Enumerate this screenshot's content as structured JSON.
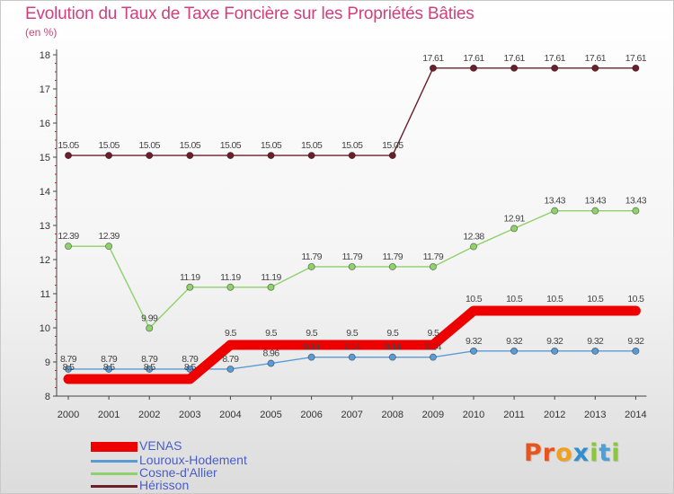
{
  "title": "Evolution du Taux de Taxe Foncière sur les Propriétés Bâties",
  "unit_label": "(en %)",
  "brand": {
    "letters": [
      "P",
      "r",
      "o",
      "x",
      "i",
      "t",
      "i"
    ],
    "colors": [
      "#e8541e",
      "#e8541e",
      "#f0a020",
      "#2f8fd0",
      "#8cc63f",
      "#4aa0d8",
      "#8cc63f"
    ]
  },
  "chart_data": {
    "type": "line",
    "title": "Evolution du Taux de Taxe Foncière sur les Propriétés Bâties",
    "ylabel": "(en %)",
    "xlabel": "",
    "x": [
      "2000",
      "2001",
      "2002",
      "2003",
      "2004",
      "2005",
      "2006",
      "2007",
      "2008",
      "2009",
      "2010",
      "2011",
      "2012",
      "2013",
      "2014"
    ],
    "ylim": [
      8,
      18
    ],
    "yticks": [
      "8",
      "9",
      "10",
      "11",
      "12",
      "13",
      "14",
      "15",
      "16",
      "17",
      "18"
    ],
    "series": [
      {
        "name": "Hérisson",
        "color": "#6b1f2a",
        "values": [
          15.05,
          15.05,
          15.05,
          15.05,
          15.05,
          15.05,
          15.05,
          15.05,
          15.05,
          17.61,
          17.61,
          17.61,
          17.61,
          17.61,
          17.61
        ],
        "labels": [
          "15.05",
          "15.05",
          "15.05",
          "15.05",
          "15.05",
          "15.05",
          "15.05",
          "15.05",
          "15.05",
          "17.61",
          "17.61",
          "17.61",
          "17.61",
          "17.61",
          "17.61"
        ]
      },
      {
        "name": "Cosne-d'Allier",
        "color": "#8fd16a",
        "values": [
          12.39,
          12.39,
          9.99,
          11.19,
          11.19,
          11.19,
          11.79,
          11.79,
          11.79,
          11.79,
          12.38,
          12.91,
          13.43,
          13.43,
          13.43
        ],
        "labels": [
          "12.39",
          "12.39",
          "9.99",
          "11.19",
          "11.19",
          "11.19",
          "11.79",
          "11.79",
          "11.79",
          "11.79",
          "12.38",
          "12.91",
          "13.43",
          "13.43",
          "13.43"
        ]
      },
      {
        "name": "Louroux-Hodement",
        "color": "#5b9bd5",
        "values": [
          8.79,
          8.79,
          8.79,
          8.79,
          8.79,
          8.96,
          9.14,
          9.14,
          9.14,
          9.14,
          9.32,
          9.32,
          9.32,
          9.32,
          9.32
        ],
        "labels": [
          "8.79",
          "8.79",
          "8.79",
          "8.79",
          "8.79",
          "8.96",
          "9.14",
          "9.14",
          "9.14",
          "9.14",
          "9.32",
          "9.32",
          "9.32",
          "9.32",
          "9.32"
        ]
      },
      {
        "name": "VENAS",
        "color": "#ee0000",
        "values": [
          8.5,
          8.5,
          8.5,
          8.5,
          9.5,
          9.5,
          9.5,
          9.5,
          9.5,
          9.5,
          10.5,
          10.5,
          10.5,
          10.5,
          10.5
        ],
        "labels": [
          "8.5",
          "8.5",
          "8.5",
          "8.5",
          "9.5",
          "9.5",
          "9.5",
          "9.5",
          "9.5",
          "9.5",
          "10.5",
          "10.5",
          "10.5",
          "10.5",
          "10.5"
        ]
      }
    ],
    "legend": [
      "VENAS",
      "Louroux-Hodement",
      "Cosne-d'Allier",
      "Hérisson"
    ],
    "legend_position": "bottom-left",
    "grid": false
  }
}
